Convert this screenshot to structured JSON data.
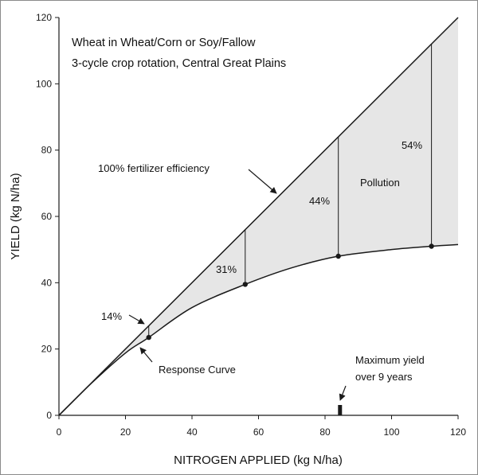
{
  "chart_data": {
    "type": "line",
    "title_lines": [
      "Wheat in Wheat/Corn or Soy/Fallow",
      "3-cycle crop rotation, Central Great Plains"
    ],
    "xlabel": "NITROGEN APPLIED (kg N/ha)",
    "ylabel": "YIELD (kg N/ha)",
    "xlim": [
      0,
      120
    ],
    "ylim": [
      0,
      120
    ],
    "x_ticks": [
      0,
      20,
      40,
      60,
      80,
      100,
      120
    ],
    "y_ticks": [
      0,
      20,
      40,
      60,
      80,
      100,
      120
    ],
    "grid": false,
    "series": [
      {
        "name": "100% fertilizer efficiency",
        "x": [
          0,
          120
        ],
        "y": [
          0,
          120
        ]
      },
      {
        "name": "Response Curve",
        "x": [
          0,
          10,
          20,
          27,
          40,
          56,
          70,
          84,
          100,
          112,
          120
        ],
        "y": [
          0,
          9.9,
          18.8,
          23.5,
          32.5,
          39.5,
          44.5,
          48,
          50,
          51,
          51.5
        ]
      }
    ],
    "measured_points": [
      {
        "x": 27,
        "y": 23.5,
        "label": "14%"
      },
      {
        "x": 56,
        "y": 39.5,
        "label": "31%"
      },
      {
        "x": 84,
        "y": 48,
        "label": "44%"
      },
      {
        "x": 112,
        "y": 51,
        "label": "54%"
      }
    ],
    "region_label": "Pollution",
    "max_yield_marker": {
      "x": 84.5,
      "label_lines": [
        "Maximum yield",
        "over 9 years"
      ]
    },
    "colors": {
      "pollution_fill": "#e6e6e6",
      "line": "#1a1a1a",
      "frame": "#8a8a8a"
    }
  }
}
